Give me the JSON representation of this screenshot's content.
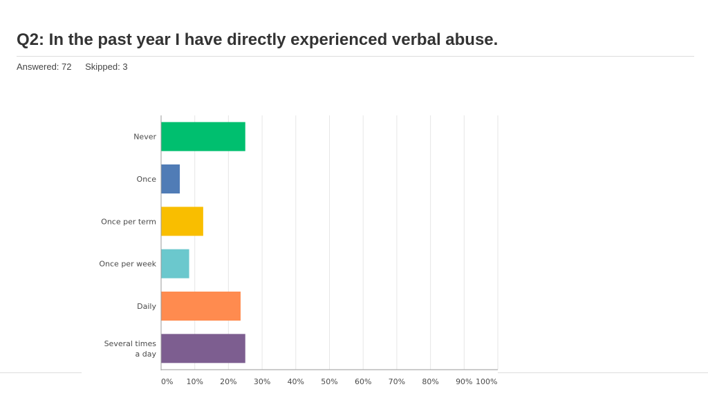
{
  "page": {
    "title": "Q2: In the past year I have directly experienced verbal abuse.",
    "answered": "Answered: 72",
    "skipped": "Skipped: 3"
  },
  "chart_data": {
    "type": "bar",
    "orientation": "horizontal",
    "categories": [
      [
        "Never"
      ],
      [
        "Once"
      ],
      [
        "Once per term"
      ],
      [
        "Once per week"
      ],
      [
        "Daily"
      ],
      [
        "Several times",
        "a day"
      ]
    ],
    "values": [
      25.0,
      5.56,
      12.5,
      8.33,
      23.61,
      25.0
    ],
    "colors": [
      "#00bf6f",
      "#507cb6",
      "#f9be00",
      "#6bc8cd",
      "#ff8b4f",
      "#7d5e90"
    ],
    "xlim": [
      0,
      100
    ],
    "xticks": [
      "0%",
      "10%",
      "20%",
      "30%",
      "40%",
      "50%",
      "60%",
      "70%",
      "80%",
      "90%",
      "100%"
    ],
    "grid": true,
    "legend": "none"
  }
}
